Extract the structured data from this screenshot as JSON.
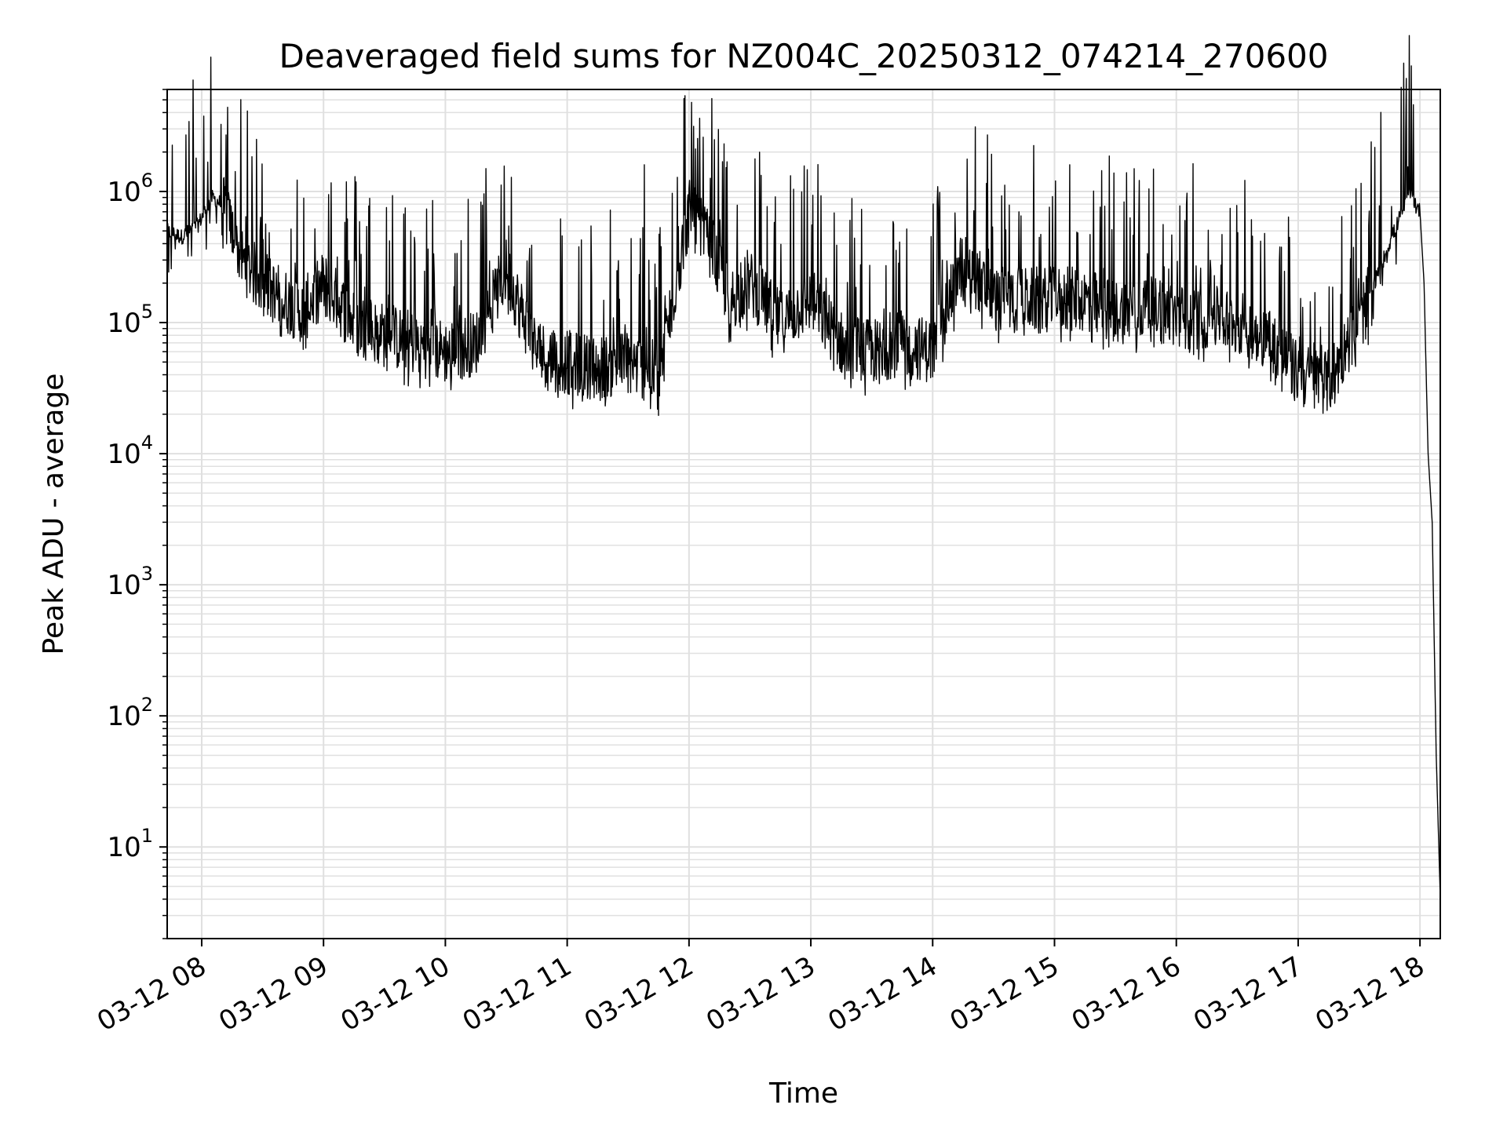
{
  "chart_data": {
    "type": "line",
    "title": "Deaveraged field sums for NZ004C_20250312_074214_270600",
    "xlabel": "Time",
    "ylabel": "Peak ADU - average",
    "x_axis": {
      "kind": "date",
      "range": [
        "2025-03-12 07:43",
        "2025-03-12 18:10"
      ],
      "tick_labels": [
        "03-12 08",
        "03-12 09",
        "03-12 10",
        "03-12 11",
        "03-12 12",
        "03-12 13",
        "03-12 14",
        "03-12 15",
        "03-12 16",
        "03-12 17",
        "03-12 18"
      ]
    },
    "y_axis": {
      "scale": "log",
      "range": [
        2,
        6000000
      ],
      "tick_values": [
        10,
        100,
        1000,
        10000,
        100000,
        1000000
      ],
      "tick_labels": [
        {
          "base": "10",
          "exp": "1"
        },
        {
          "base": "10",
          "exp": "2"
        },
        {
          "base": "10",
          "exp": "3"
        },
        {
          "base": "10",
          "exp": "4"
        },
        {
          "base": "10",
          "exp": "5"
        },
        {
          "base": "10",
          "exp": "6"
        }
      ]
    },
    "grid": true,
    "grid_minor": true,
    "line_color": "#000000",
    "grid_color": "#e0e0e0",
    "series": [
      {
        "x": [
          "07:43",
          "07:50",
          "07:58",
          "08:05",
          "08:10",
          "08:20",
          "08:30",
          "08:40",
          "08:50",
          "09:00",
          "09:15",
          "09:30",
          "09:45",
          "10:00",
          "10:15",
          "10:30",
          "10:45",
          "11:00",
          "11:15",
          "11:30",
          "11:45",
          "12:00",
          "12:10",
          "12:20",
          "12:30",
          "12:45",
          "13:00",
          "13:15",
          "13:30",
          "13:45",
          "14:00",
          "14:15",
          "14:30",
          "14:45",
          "15:00",
          "15:15",
          "15:30",
          "15:45",
          "16:00",
          "16:15",
          "16:30",
          "16:45",
          "17:00",
          "17:15",
          "17:30",
          "17:45",
          "17:55",
          "18:00",
          "18:02",
          "18:04",
          "18:06",
          "18:08",
          "18:10"
        ],
        "y": [
          500000,
          450000,
          550000,
          900000,
          800000,
          300000,
          200000,
          150000,
          120000,
          200000,
          100000,
          80000,
          70000,
          60000,
          70000,
          250000,
          60000,
          50000,
          45000,
          50000,
          40000,
          700000,
          400000,
          150000,
          200000,
          100000,
          150000,
          70000,
          60000,
          70000,
          60000,
          300000,
          150000,
          150000,
          150000,
          150000,
          120000,
          130000,
          110000,
          110000,
          100000,
          80000,
          40000,
          35000,
          100000,
          400000,
          1000000,
          700000,
          200000,
          10000,
          3000,
          50,
          4
        ],
        "spikes": [
          {
            "x": "08:12",
            "y": 2700000
          },
          {
            "x": "11:38",
            "y": 1600000
          },
          {
            "x": "14:27",
            "y": 2700000
          },
          {
            "x": "17:53",
            "y": 3000000
          }
        ]
      }
    ]
  }
}
